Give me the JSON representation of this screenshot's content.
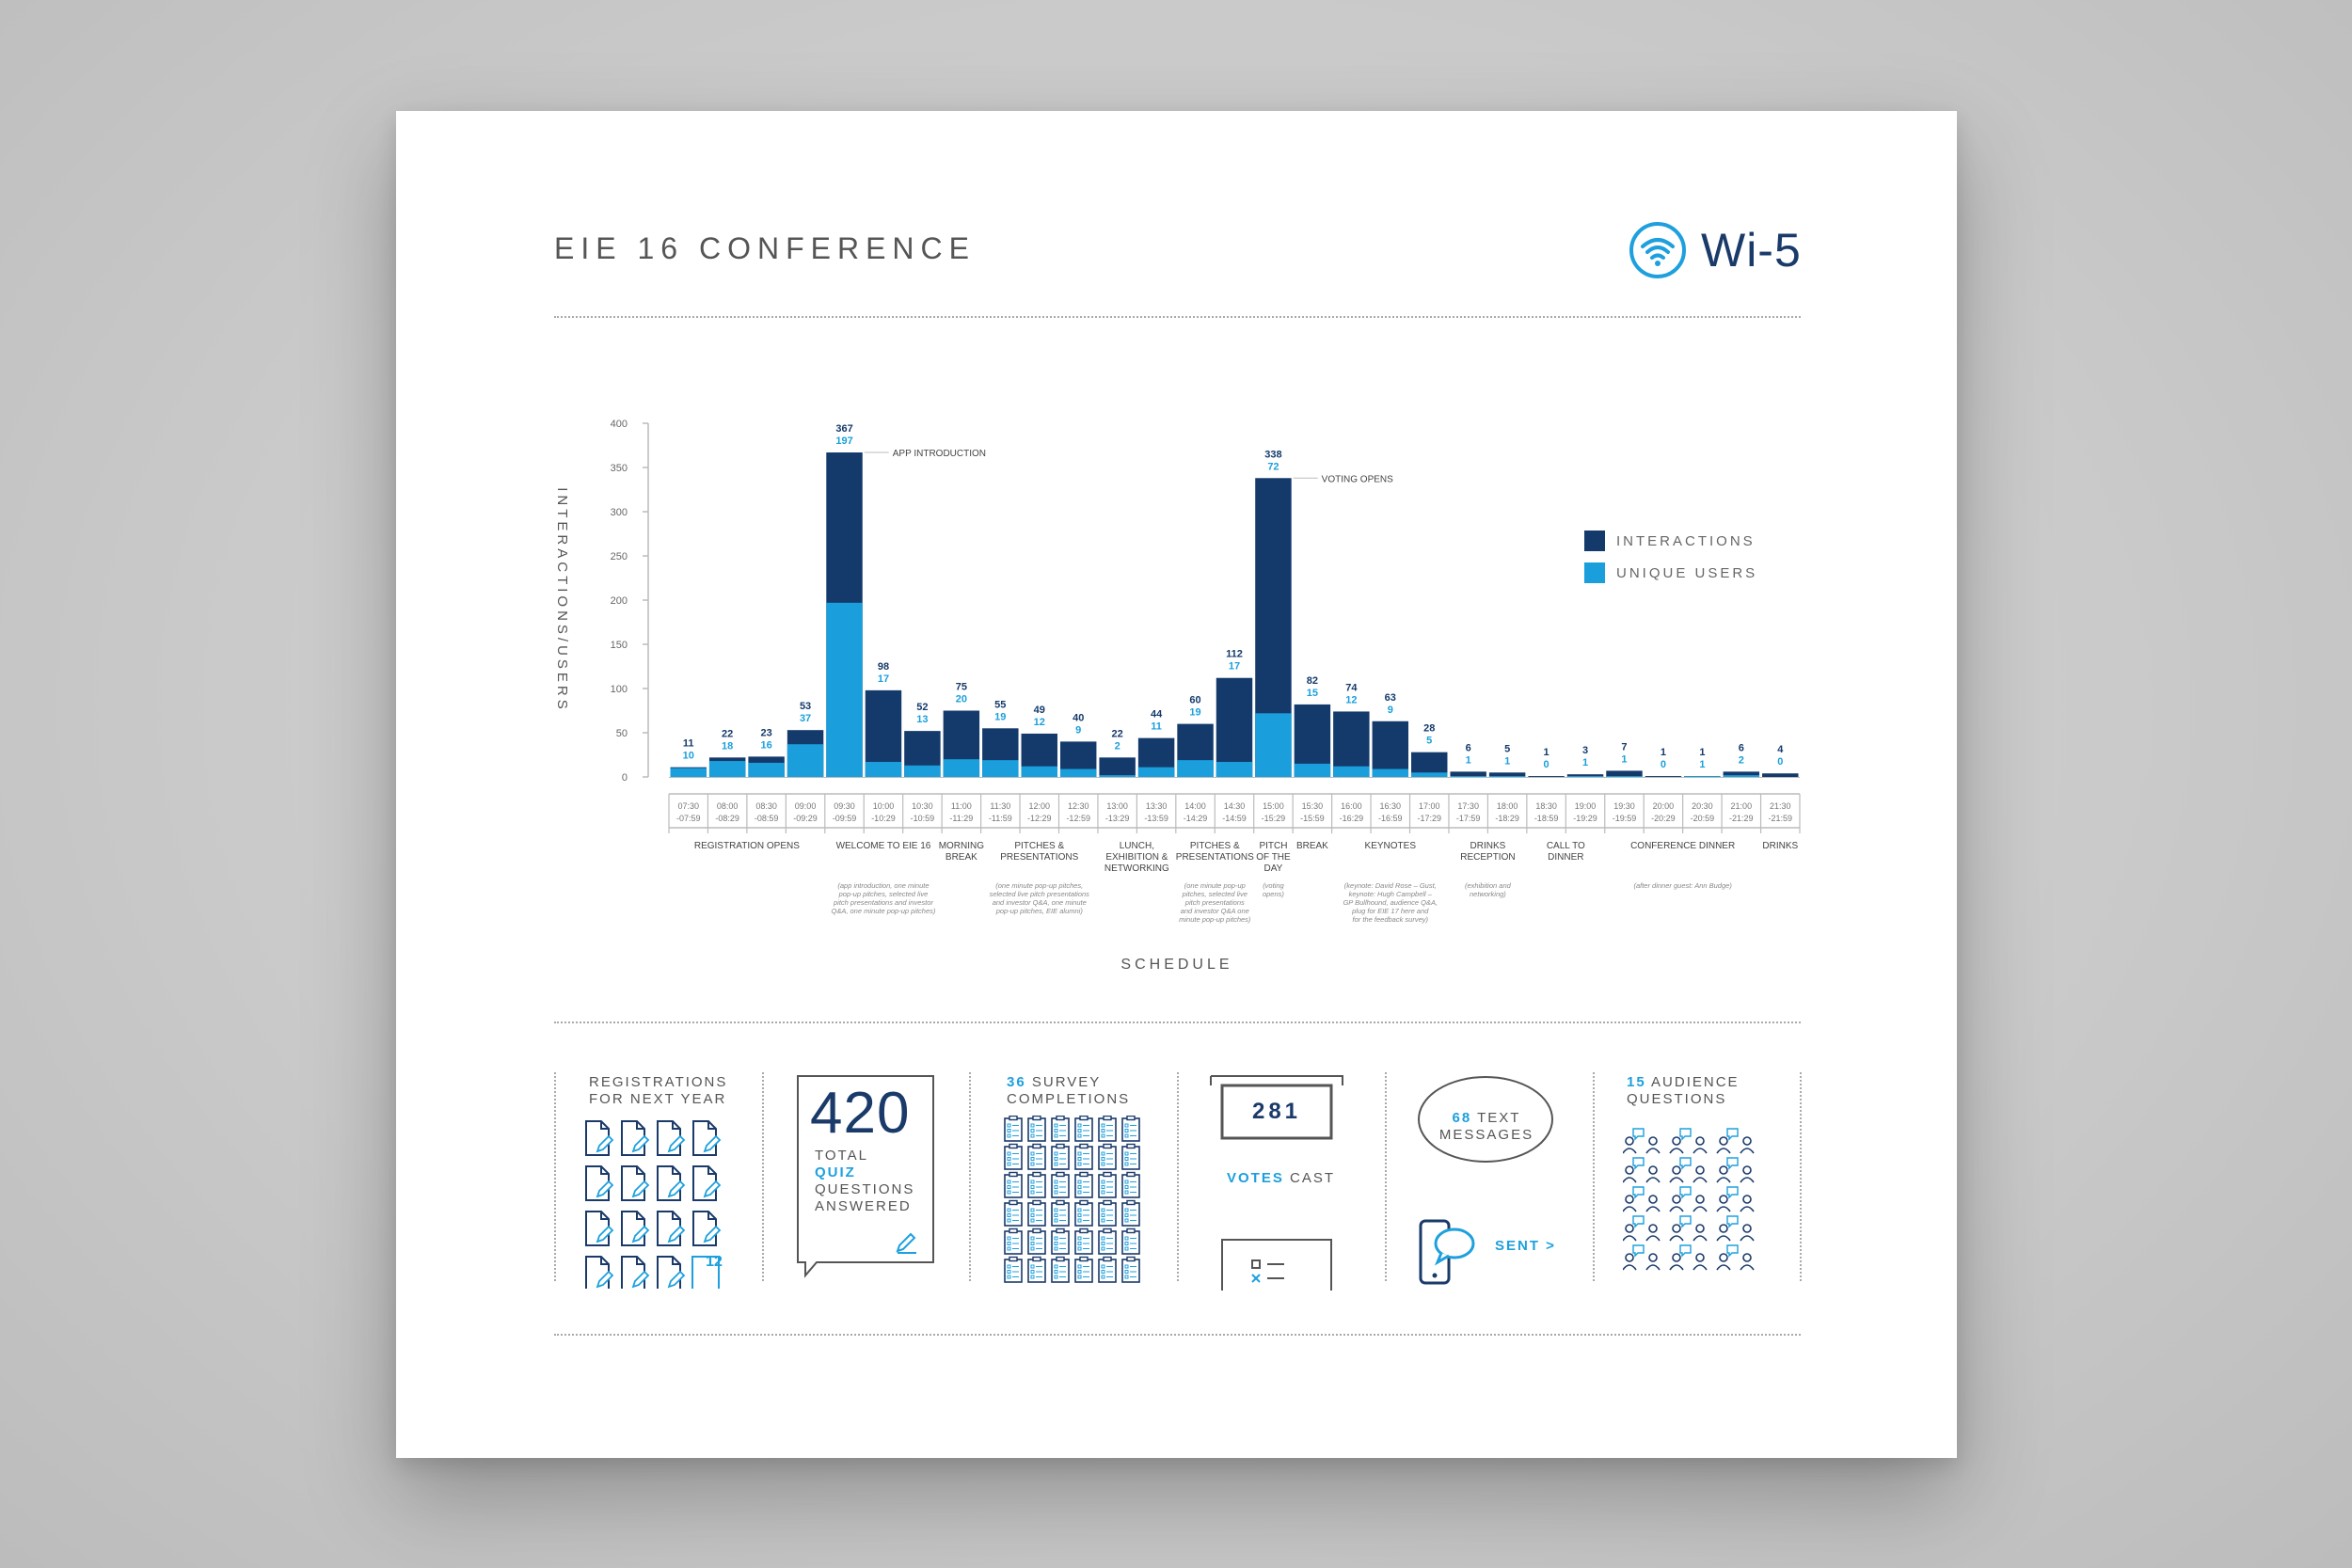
{
  "header": {
    "title": "EIE 16 CONFERENCE",
    "logo_text": "Wi-5"
  },
  "colors": {
    "interactions": "#143a6b",
    "unique_users": "#1a9fdc",
    "text": "#555555",
    "grid": "#bbbbbb"
  },
  "chart_data": {
    "type": "bar",
    "stacked": "overlay",
    "ylabel": "INTERACTIONS/USERS",
    "xlabel": "SCHEDULE",
    "ylim": [
      0,
      400
    ],
    "yticks": [
      0,
      50,
      100,
      150,
      200,
      250,
      300,
      350,
      400
    ],
    "legend_position": "right",
    "categories": [
      [
        "07:30",
        "-07:59"
      ],
      [
        "08:00",
        "-08:29"
      ],
      [
        "08:30",
        "-08:59"
      ],
      [
        "09:00",
        "-09:29"
      ],
      [
        "09:30",
        "-09:59"
      ],
      [
        "10:00",
        "-10:29"
      ],
      [
        "10:30",
        "-10:59"
      ],
      [
        "11:00",
        "-11:29"
      ],
      [
        "11:30",
        "-11:59"
      ],
      [
        "12:00",
        "-12:29"
      ],
      [
        "12:30",
        "-12:59"
      ],
      [
        "13:00",
        "-13:29"
      ],
      [
        "13:30",
        "-13:59"
      ],
      [
        "14:00",
        "-14:29"
      ],
      [
        "14:30",
        "-14:59"
      ],
      [
        "15:00",
        "-15:29"
      ],
      [
        "15:30",
        "-15:59"
      ],
      [
        "16:00",
        "-16:29"
      ],
      [
        "16:30",
        "-16:59"
      ],
      [
        "17:00",
        "-17:29"
      ],
      [
        "17:30",
        "-17:59"
      ],
      [
        "18:00",
        "-18:29"
      ],
      [
        "18:30",
        "-18:59"
      ],
      [
        "19:00",
        "-19:29"
      ],
      [
        "19:30",
        "-19:59"
      ],
      [
        "20:00",
        "-20:29"
      ],
      [
        "20:30",
        "-20:59"
      ],
      [
        "21:00",
        "-21:29"
      ],
      [
        "21:30",
        "-21:59"
      ]
    ],
    "series": [
      {
        "name": "INTERACTIONS",
        "values": [
          11,
          22,
          23,
          53,
          367,
          98,
          52,
          75,
          55,
          49,
          40,
          22,
          44,
          60,
          112,
          338,
          82,
          74,
          63,
          28,
          6,
          5,
          1,
          3,
          7,
          1,
          1,
          6,
          4
        ]
      },
      {
        "name": "UNIQUE USERS",
        "values": [
          10,
          18,
          16,
          37,
          197,
          17,
          13,
          20,
          19,
          12,
          9,
          2,
          11,
          19,
          17,
          72,
          15,
          12,
          9,
          5,
          1,
          1,
          0,
          1,
          1,
          0,
          1,
          2,
          0
        ]
      }
    ],
    "annotations": [
      {
        "index": 4,
        "text": "APP INTRODUCTION"
      },
      {
        "index": 15,
        "text": "VOTING OPENS"
      }
    ],
    "sessions": [
      {
        "from": 0,
        "to": 3,
        "label": [
          "REGISTRATION OPENS"
        ],
        "note": []
      },
      {
        "from": 4,
        "to": 6,
        "label": [
          "WELCOME TO EIE 16"
        ],
        "note": [
          "(app introduction, one minute",
          "pop-up pitches, selected live",
          "pitch presentations and investor",
          "Q&A, one minute pop-up pitches)"
        ]
      },
      {
        "from": 7,
        "to": 7,
        "label": [
          "MORNING",
          "BREAK"
        ],
        "note": []
      },
      {
        "from": 8,
        "to": 10,
        "label": [
          "PITCHES &",
          "PRESENTATIONS"
        ],
        "note": [
          "(one minute pop-up pitches,",
          "selected live pitch presentations",
          "and investor Q&A, one minute",
          "pop-up pitches, EIE alumni)"
        ]
      },
      {
        "from": 11,
        "to": 12,
        "label": [
          "LUNCH,",
          "EXHIBITION &",
          "NETWORKING"
        ],
        "note": []
      },
      {
        "from": 13,
        "to": 14,
        "label": [
          "PITCHES &",
          "PRESENTATIONS"
        ],
        "note": [
          "(one minute pop-up",
          "pitches, selected live",
          "pitch presentations",
          "and investor Q&A one",
          "minute pop-up pitches)"
        ]
      },
      {
        "from": 15,
        "to": 15,
        "label": [
          "PITCH",
          "OF THE",
          "DAY"
        ],
        "note": [
          "(voting",
          "opens)"
        ]
      },
      {
        "from": 16,
        "to": 16,
        "label": [
          "BREAK"
        ],
        "note": []
      },
      {
        "from": 17,
        "to": 19,
        "label": [
          "KEYNOTES"
        ],
        "note": [
          "(keynote: David Rose – Gust,",
          "keynote: Hugh Campbell –",
          "GP Bullhound, audience Q&A,",
          "plug for EIE 17 here and",
          "for the feedback survey)"
        ]
      },
      {
        "from": 20,
        "to": 21,
        "label": [
          "DRINKS",
          "RECEPTION"
        ],
        "note": [
          "(exhibition and",
          "networking)"
        ]
      },
      {
        "from": 22,
        "to": 23,
        "label": [
          "CALL TO",
          "DINNER"
        ],
        "note": []
      },
      {
        "from": 24,
        "to": 27,
        "label": [
          "CONFERENCE DINNER"
        ],
        "note": [
          "(after dinner guest: Ann Budge)"
        ]
      },
      {
        "from": 28,
        "to": 28,
        "label": [
          "DRINKS"
        ],
        "note": []
      }
    ]
  },
  "stats": {
    "registrations": {
      "line1": "REGISTRATIONS",
      "line2": "FOR NEXT YEAR",
      "badge": "12",
      "count_icons": 16
    },
    "quiz": {
      "number": "420",
      "line1": "TOTAL",
      "line2": "QUIZ",
      "line3": "QUESTIONS",
      "line4": "ANSWERED"
    },
    "survey": {
      "number": "36",
      "line1": "SURVEY",
      "line2": "COMPLETIONS"
    },
    "votes": {
      "number": "281",
      "label_accent": "VOTES",
      "label_rest": "CAST"
    },
    "texts": {
      "number": "68",
      "line1": "TEXT",
      "line2": "MESSAGES",
      "sent": "SENT >"
    },
    "audience": {
      "number": "15",
      "line1": "AUDIENCE",
      "line2": "QUESTIONS"
    }
  }
}
